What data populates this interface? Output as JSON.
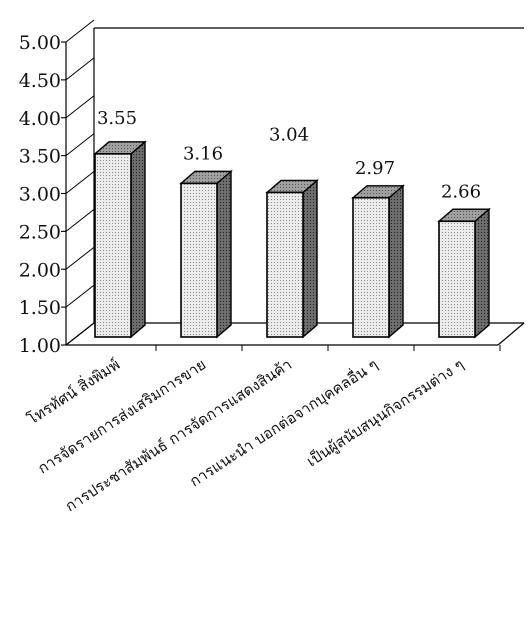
{
  "chart_data": {
    "type": "bar",
    "title": "",
    "xlabel": "",
    "ylabel": "",
    "ylim": [
      1.0,
      5.0
    ],
    "yticks": [
      "1.00",
      "1.50",
      "2.00",
      "2.50",
      "3.00",
      "3.50",
      "4.00",
      "4.50",
      "5.00"
    ],
    "grid": false,
    "style": "3d-bar",
    "categories": [
      "โทรทัศน์ สิ่งพิมพ์",
      "การจัดรายการส่งเสริมการขาย",
      "การประชาสัมพันธ์ การจัดการแสดงสินค้า",
      "การแนะนำ บอกต่อจากบุคคลอื่น ๆ",
      "เป็นผู้สนับสนุนกิจกรรมต่าง ๆ"
    ],
    "values": [
      3.55,
      3.16,
      3.04,
      2.97,
      2.66
    ],
    "value_labels": [
      "3.55",
      "3.16",
      "3.04",
      "2.97",
      "2.66"
    ],
    "colors": {
      "bar_front": "#dedede",
      "bar_side": "#6a6a6a",
      "bar_top": "#9a9a9a",
      "axis": "#000000"
    }
  }
}
